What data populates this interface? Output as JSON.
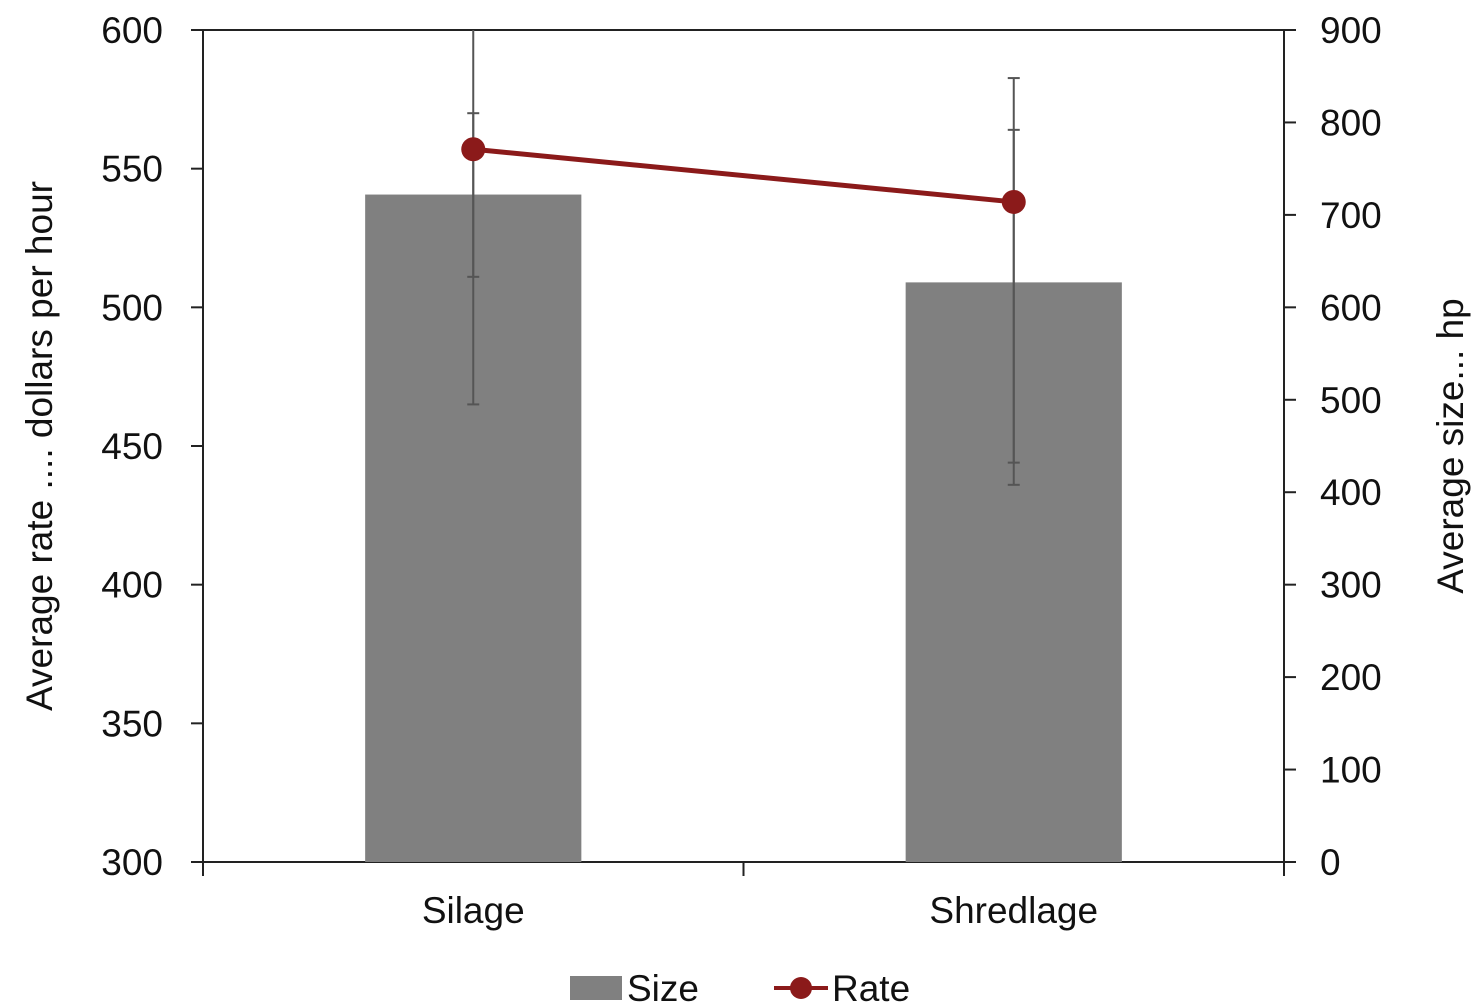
{
  "chart_data": {
    "type": "bar",
    "categories": [
      "Silage",
      "Shredlage"
    ],
    "series": [
      {
        "name": "Size",
        "kind": "bar",
        "axis": "right",
        "color": "#808080",
        "values": [
          722,
          627
        ],
        "error_low": [
          495,
          408
        ],
        "error_high": [
          950,
          848
        ]
      },
      {
        "name": "Rate",
        "kind": "line",
        "axis": "left",
        "color": "#8B1A1A",
        "marker": "circle",
        "values": [
          557,
          538
        ],
        "error_low": [
          511,
          444
        ],
        "error_high": [
          570,
          564
        ]
      }
    ],
    "y_left": {
      "label": "Average rate .... dollars per hour",
      "min": 300,
      "max": 600,
      "ticks": [
        300,
        350,
        400,
        450,
        500,
        550,
        600
      ]
    },
    "y_right": {
      "label": "Average size... hp",
      "min": 0,
      "max": 900,
      "ticks": [
        0,
        100,
        200,
        300,
        400,
        500,
        600,
        700,
        800,
        900
      ]
    },
    "legend": {
      "position": "bottom-center",
      "items": [
        "Size",
        "Rate"
      ]
    },
    "grid": false
  }
}
